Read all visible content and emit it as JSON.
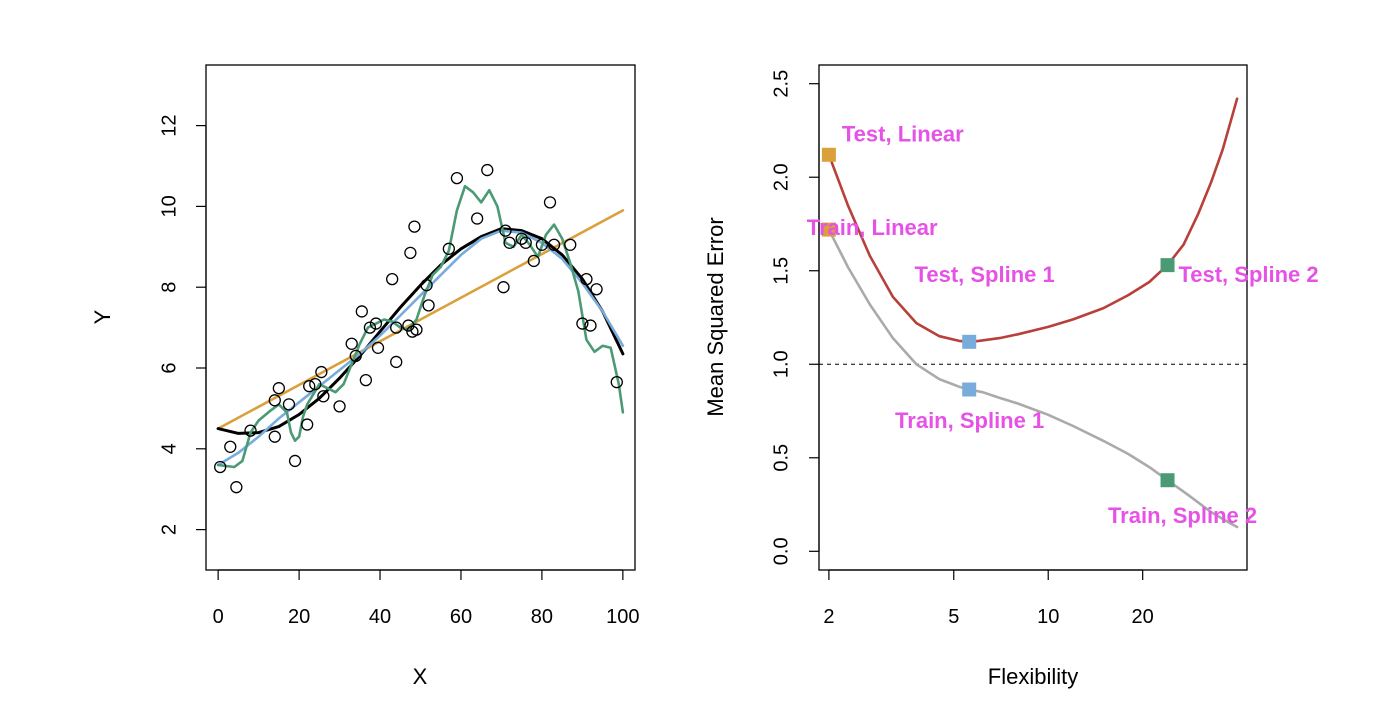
{
  "chart_data": [
    {
      "type": "scatter",
      "xlabel": "X",
      "ylabel": "Y",
      "xlim": [
        -3,
        103
      ],
      "ylim": [
        1,
        13.5
      ],
      "xticks": [
        0,
        20,
        40,
        60,
        80,
        100
      ],
      "yticks": [
        2,
        4,
        6,
        8,
        10,
        12
      ],
      "grid": false,
      "points": [
        [
          0.5,
          3.55
        ],
        [
          3,
          4.05
        ],
        [
          4.5,
          3.05
        ],
        [
          8,
          4.45
        ],
        [
          14,
          5.2
        ],
        [
          14,
          4.3
        ],
        [
          15,
          5.5
        ],
        [
          17.5,
          5.1
        ],
        [
          19,
          3.7
        ],
        [
          22,
          4.6
        ],
        [
          22.5,
          5.55
        ],
        [
          24,
          5.6
        ],
        [
          25.5,
          5.9
        ],
        [
          26,
          5.3
        ],
        [
          30,
          5.05
        ],
        [
          33,
          6.6
        ],
        [
          34,
          6.3
        ],
        [
          35.5,
          7.4
        ],
        [
          36.5,
          5.7
        ],
        [
          37.5,
          7.0
        ],
        [
          39,
          7.1
        ],
        [
          39.5,
          6.5
        ],
        [
          43,
          8.2
        ],
        [
          44,
          6.15
        ],
        [
          44,
          7.0
        ],
        [
          47,
          7.05
        ],
        [
          47.5,
          8.85
        ],
        [
          48,
          6.9
        ],
        [
          48.5,
          9.5
        ],
        [
          49,
          6.95
        ],
        [
          51.5,
          8.05
        ],
        [
          52,
          7.55
        ],
        [
          57,
          8.95
        ],
        [
          59,
          10.7
        ],
        [
          64,
          9.7
        ],
        [
          66.5,
          10.9
        ],
        [
          70.5,
          8.0
        ],
        [
          71,
          9.4
        ],
        [
          72,
          9.1
        ],
        [
          75,
          9.2
        ],
        [
          76,
          9.1
        ],
        [
          78,
          8.65
        ],
        [
          80,
          9.05
        ],
        [
          82,
          10.1
        ],
        [
          83,
          9.05
        ],
        [
          87,
          9.05
        ],
        [
          90,
          7.1
        ],
        [
          91,
          8.2
        ],
        [
          92,
          7.05
        ],
        [
          93.5,
          7.95
        ],
        [
          98.5,
          5.65
        ]
      ],
      "series": [
        {
          "name": "",
          "color": "#DAA03A",
          "x": [
            0,
            100
          ],
          "y": [
            4.5,
            9.9
          ]
        },
        {
          "name": "",
          "color": "#000000",
          "x": [
            0,
            5,
            10,
            15,
            20,
            25,
            30,
            35,
            40,
            45,
            50,
            55,
            60,
            65,
            70,
            75,
            80,
            85,
            90,
            95,
            100
          ],
          "y": [
            4.5,
            4.38,
            4.4,
            4.55,
            4.85,
            5.25,
            5.75,
            6.3,
            6.9,
            7.5,
            8.05,
            8.55,
            8.95,
            9.25,
            9.45,
            9.4,
            9.2,
            8.8,
            8.2,
            7.4,
            6.35
          ]
        },
        {
          "name": "",
          "color": "#78ACDC",
          "x": [
            0,
            5,
            10,
            15,
            20,
            25,
            30,
            35,
            40,
            45,
            50,
            55,
            60,
            65,
            70,
            75,
            80,
            85,
            90,
            95,
            100
          ],
          "y": [
            3.6,
            3.9,
            4.3,
            4.75,
            5.15,
            5.55,
            5.95,
            6.35,
            6.8,
            7.3,
            7.8,
            8.3,
            8.8,
            9.2,
            9.4,
            9.35,
            9.1,
            8.7,
            8.1,
            7.4,
            6.55
          ]
        },
        {
          "name": "",
          "color": "#4A9A76",
          "x": [
            0,
            4,
            6,
            8,
            10,
            13,
            15,
            17,
            18,
            19,
            20,
            21,
            22,
            25,
            27,
            29,
            31,
            33,
            35,
            37,
            39,
            41,
            43,
            45,
            47,
            49,
            51,
            53,
            55,
            57,
            59,
            61,
            63,
            65,
            67,
            69,
            71,
            73,
            75,
            77,
            79,
            81,
            83,
            85,
            87,
            89,
            91,
            93,
            95,
            97,
            99,
            100
          ],
          "y": [
            3.6,
            3.55,
            3.7,
            4.4,
            4.7,
            4.95,
            5.1,
            4.9,
            4.4,
            4.2,
            4.3,
            4.8,
            5.1,
            5.6,
            5.5,
            5.4,
            5.6,
            6.1,
            6.6,
            7.0,
            7.1,
            7.2,
            7.15,
            7.0,
            6.95,
            7.2,
            7.8,
            8.3,
            8.5,
            8.9,
            9.9,
            10.5,
            10.35,
            10.1,
            10.4,
            10.0,
            9.1,
            9.0,
            9.3,
            9.05,
            8.75,
            9.3,
            9.55,
            9.2,
            8.6,
            7.9,
            6.7,
            6.4,
            6.55,
            6.5,
            5.6,
            4.9
          ]
        }
      ]
    },
    {
      "type": "line",
      "xlabel": "Flexibility",
      "ylabel": "Mean Squared Error",
      "xscale": "log",
      "xlim": [
        1.86,
        43
      ],
      "ylim": [
        -0.1,
        2.6
      ],
      "xticks": [
        2,
        5,
        10,
        20
      ],
      "yticks": [
        0.0,
        0.5,
        1.0,
        1.5,
        2.0,
        2.5
      ],
      "grid": false,
      "hline": {
        "y": 1.0,
        "style": "dashed",
        "color": "#000000"
      },
      "series": [
        {
          "name": "Test",
          "color": "#B8403A",
          "x": [
            2,
            2.3,
            2.7,
            3.2,
            3.8,
            4.5,
            5.2,
            5.6,
            6,
            7,
            8,
            10,
            12,
            15,
            18,
            21,
            24,
            27,
            30,
            33,
            36,
            40
          ],
          "y": [
            2.12,
            1.85,
            1.58,
            1.36,
            1.22,
            1.15,
            1.125,
            1.12,
            1.125,
            1.14,
            1.16,
            1.2,
            1.24,
            1.3,
            1.37,
            1.44,
            1.53,
            1.64,
            1.8,
            1.97,
            2.15,
            2.42
          ]
        },
        {
          "name": "Train",
          "color": "#AAAAAA",
          "x": [
            2,
            2.3,
            2.7,
            3.2,
            3.8,
            4.5,
            5.2,
            5.6,
            6.2,
            7,
            8,
            10,
            12,
            15,
            18,
            21,
            24,
            28,
            33,
            38,
            40
          ],
          "y": [
            1.72,
            1.52,
            1.32,
            1.14,
            1.0,
            0.92,
            0.88,
            0.865,
            0.85,
            0.82,
            0.79,
            0.73,
            0.67,
            0.59,
            0.52,
            0.45,
            0.38,
            0.3,
            0.21,
            0.15,
            0.13
          ]
        }
      ],
      "markers": [
        {
          "x": 2,
          "y": 2.12,
          "color": "#DAA03A"
        },
        {
          "x": 2,
          "y": 1.72,
          "color": "#DAA03A"
        },
        {
          "x": 5.6,
          "y": 1.12,
          "color": "#78ACDC"
        },
        {
          "x": 5.6,
          "y": 0.865,
          "color": "#78ACDC"
        },
        {
          "x": 24,
          "y": 1.53,
          "color": "#4A9A76"
        },
        {
          "x": 24,
          "y": 0.38,
          "color": "#4A9A76"
        }
      ],
      "annotations": [
        {
          "text": "Test, Linear",
          "x": 2.2,
          "y": 2.19
        },
        {
          "text": "Train, Linear",
          "x": 1.7,
          "y": 1.69
        },
        {
          "text": "Test, Spline 1",
          "x": 3.75,
          "y": 1.44
        },
        {
          "text": "Test, Spline 2",
          "x": 26,
          "y": 1.44
        },
        {
          "text": "Train, Spline 1",
          "x": 3.25,
          "y": 0.66
        },
        {
          "text": "Train, Spline 2",
          "x": 15.5,
          "y": 0.15
        }
      ],
      "annotation_color": "#E652E6"
    }
  ]
}
